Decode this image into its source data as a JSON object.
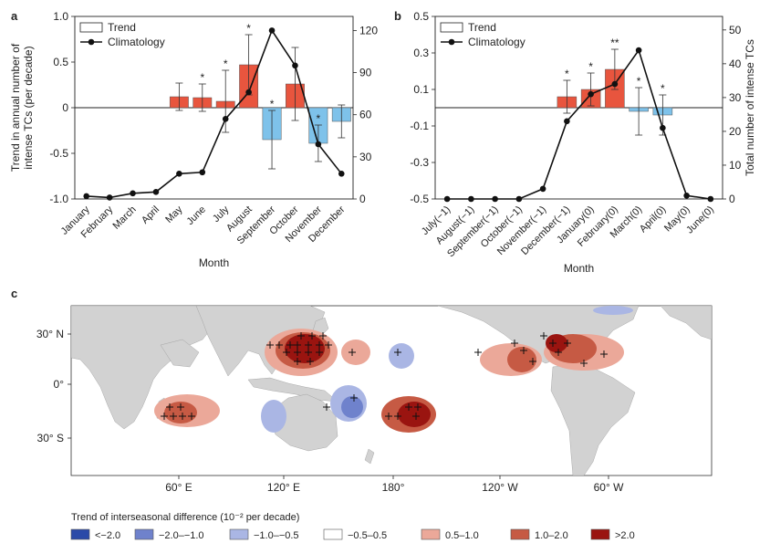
{
  "chart_data": [
    {
      "panel": "a",
      "type": "bar+line",
      "legend": [
        "Trend",
        "Climatology"
      ],
      "xlabel": "Month",
      "ylabel": "Trend in annual number of intense TCs (per decade)",
      "ylim": [
        -1.0,
        1.0
      ],
      "y_ticks": [
        "1.0",
        "0.5",
        "0",
        "-0.5",
        "-1.0"
      ],
      "y2lim": [
        0,
        130
      ],
      "y2_ticks": [
        "120",
        "90",
        "60",
        "30",
        "0"
      ],
      "categories": [
        "January",
        "February",
        "March",
        "April",
        "May",
        "June",
        "July",
        "August",
        "September",
        "October",
        "November",
        "December"
      ],
      "series": [
        {
          "name": "Trend",
          "values": [
            0,
            0,
            0,
            0,
            0.12,
            0.11,
            0.07,
            0.47,
            -0.35,
            0.26,
            -0.39,
            -0.15
          ],
          "err": [
            0,
            0,
            0,
            0,
            0.15,
            0.15,
            0.34,
            0.33,
            0.32,
            0.4,
            0.2,
            0.18
          ],
          "significant": [
            "",
            "",
            "",
            "",
            "",
            "*",
            "*",
            "*",
            "*",
            "",
            "*",
            ""
          ]
        },
        {
          "name": "Climatology",
          "values": [
            2,
            1,
            4,
            5,
            18,
            19,
            57,
            76,
            120,
            95,
            39,
            18
          ]
        }
      ]
    },
    {
      "panel": "b",
      "type": "bar+line",
      "legend": [
        "Trend",
        "Climatology"
      ],
      "xlabel": "Month",
      "ylabel": "Total number of intense TCs",
      "ylim": [
        -0.5,
        0.5
      ],
      "y_ticks": [
        "0.5",
        "0.3",
        "0.1",
        "-0.1",
        "-0.3",
        "-0.5"
      ],
      "y2lim": [
        0,
        54
      ],
      "y2_ticks": [
        "50",
        "40",
        "30",
        "20",
        "10",
        "0"
      ],
      "categories": [
        "July(−1)",
        "August(−1)",
        "September(−1)",
        "October(−1)",
        "November(−1)",
        "December(−1)",
        "January(0)",
        "February(0)",
        "March(0)",
        "April(0)",
        "May(0)",
        "June(0)"
      ],
      "series": [
        {
          "name": "Trend",
          "values": [
            0,
            0,
            0,
            0,
            0,
            0.06,
            0.1,
            0.21,
            -0.02,
            -0.04,
            0,
            0
          ],
          "err": [
            0,
            0,
            0,
            0,
            0,
            0.09,
            0.09,
            0.11,
            0.13,
            0.11,
            0,
            0
          ],
          "significant": [
            "",
            "",
            "",
            "",
            "",
            "*",
            "*",
            "**",
            "*",
            "*",
            "",
            ""
          ]
        },
        {
          "name": "Climatology",
          "values": [
            0,
            0,
            0,
            0,
            3,
            23,
            31,
            34,
            44,
            21,
            1,
            0
          ]
        }
      ]
    },
    {
      "panel": "c",
      "type": "map",
      "lat_ticks": [
        "30° N",
        "0°",
        "30° S"
      ],
      "lon_ticks": [
        "60° E",
        "120° E",
        "180°",
        "120° W",
        "60° W"
      ],
      "legend_title": "Trend of interseasonal difference (10⁻² per decade)",
      "legend": [
        {
          "label": "<−2.0",
          "color": "#2b4aa8"
        },
        {
          "label": "−2.0–−1.0",
          "color": "#6f82cc"
        },
        {
          "label": "−1.0–−0.5",
          "color": "#aab6e4"
        },
        {
          "label": "−0.5–0.5",
          "color": "#ffffff"
        },
        {
          "label": "0.5–1.0",
          "color": "#eba899"
        },
        {
          "label": "1.0–2.0",
          "color": "#c65a44"
        },
        {
          "label": ">2.0",
          "color": "#9a1410"
        }
      ]
    }
  ],
  "panels": {
    "a": "a",
    "b": "b",
    "c": "c"
  },
  "colors": {
    "pos": "#e8553e",
    "neg": "#7ec2ea",
    "land": "#d2d2d2",
    "ocean": "#ffffff"
  }
}
